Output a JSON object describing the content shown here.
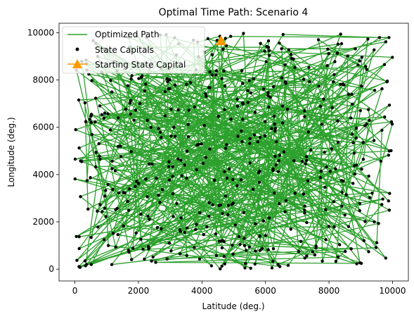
{
  "chart_data": {
    "type": "scatter",
    "title": "Optimal Time Path: Scenario 4",
    "xlabel": "Latitude (deg.)",
    "ylabel": "Longitude (deg.)",
    "xlim": [
      -500,
      10500
    ],
    "ylim": [
      -500,
      10400
    ],
    "x_ticks": [
      0,
      2000,
      4000,
      6000,
      8000,
      10000
    ],
    "y_ticks": [
      0,
      2000,
      4000,
      6000,
      8000,
      10000
    ],
    "grid": false,
    "legend_position": "top-left",
    "series": [
      {
        "name": "Optimized Path",
        "kind": "line",
        "color": "#2ca02c"
      },
      {
        "name": "State Capitals",
        "kind": "scatter",
        "color": "#000000"
      },
      {
        "name": "Starting State Capital",
        "kind": "marker",
        "color": "#ff9900",
        "points": [
          [
            4600,
            9650
          ]
        ]
      }
    ],
    "generator": {
      "seed": 20240517,
      "count": 520,
      "x_range": [
        0,
        10000
      ],
      "y_range": [
        0,
        10000
      ]
    }
  }
}
